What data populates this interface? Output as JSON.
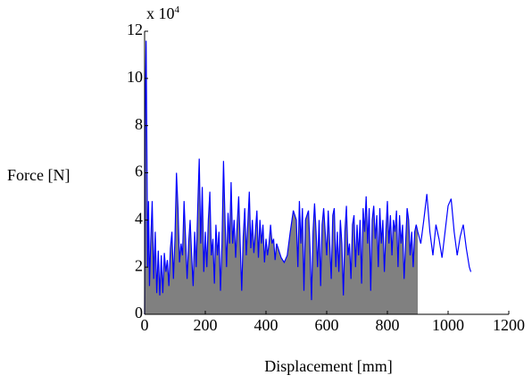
{
  "chart_data": {
    "type": "line",
    "xlabel": "Displacement [mm]",
    "ylabel": "Force [N]",
    "y_multiplier": "x 10",
    "y_multiplier_exp": "4",
    "x": [
      0,
      2,
      5,
      8,
      10,
      13,
      16,
      20,
      25,
      30,
      35,
      40,
      45,
      50,
      55,
      60,
      65,
      70,
      75,
      80,
      85,
      90,
      95,
      100,
      105,
      110,
      115,
      120,
      125,
      130,
      135,
      140,
      145,
      150,
      155,
      160,
      165,
      170,
      175,
      180,
      185,
      190,
      195,
      200,
      205,
      210,
      215,
      220,
      225,
      230,
      235,
      240,
      245,
      250,
      255,
      260,
      265,
      270,
      275,
      280,
      285,
      290,
      295,
      300,
      305,
      310,
      315,
      320,
      325,
      330,
      335,
      340,
      345,
      350,
      355,
      360,
      365,
      370,
      375,
      380,
      385,
      390,
      395,
      400,
      405,
      410,
      415,
      420,
      425,
      430,
      435,
      440,
      450,
      460,
      470,
      480,
      490,
      500,
      505,
      510,
      515,
      520,
      525,
      530,
      540,
      545,
      550,
      555,
      560,
      565,
      570,
      575,
      580,
      585,
      590,
      600,
      605,
      610,
      615,
      620,
      625,
      630,
      635,
      640,
      645,
      650,
      655,
      660,
      665,
      670,
      675,
      680,
      685,
      690,
      695,
      700,
      705,
      710,
      715,
      720,
      725,
      730,
      735,
      740,
      745,
      750,
      755,
      760,
      765,
      770,
      775,
      780,
      785,
      790,
      795,
      800,
      805,
      810,
      815,
      820,
      825,
      830,
      835,
      840,
      845,
      850,
      855,
      860,
      865,
      870,
      875,
      880,
      885,
      890,
      895,
      900,
      910,
      920,
      930,
      940,
      950,
      960,
      970,
      980,
      990,
      1000,
      1010,
      1020,
      1030,
      1040,
      1050,
      1060,
      1070,
      1075
    ],
    "series": [
      {
        "name": "Force",
        "color": "#0000ff",
        "values": [
          0,
          8.4,
          11.6,
          6,
          2,
          4.8,
          1.2,
          3,
          4.8,
          1.5,
          3.5,
          0.9,
          2.7,
          0.8,
          2.5,
          0.9,
          2.6,
          1.8,
          2.3,
          1.2,
          2.8,
          3.5,
          1.5,
          3.2,
          6.0,
          4.5,
          2.2,
          3.0,
          2.5,
          4.8,
          3.2,
          1.5,
          3.0,
          4.0,
          2.5,
          1.2,
          3.5,
          2.0,
          4.5,
          6.6,
          3.0,
          5.4,
          1.8,
          3.5,
          2.0,
          4.0,
          5.2,
          2.5,
          3.2,
          1.3,
          3.8,
          2.5,
          3.5,
          1.0,
          3.0,
          6.5,
          4.0,
          2.0,
          4.3,
          3.0,
          5.6,
          3.0,
          4.0,
          2.4,
          3.8,
          5.0,
          3.0,
          1.0,
          3.3,
          4.5,
          2.5,
          3.8,
          5.2,
          2.8,
          4.0,
          2.6,
          3.5,
          4.4,
          2.4,
          4.0,
          3.0,
          3.8,
          2.2,
          3.2,
          2.5,
          3.0,
          3.8,
          3.0,
          3.2,
          2.3,
          3.0,
          2.8,
          2.4,
          2.2,
          2.5,
          3.5,
          4.4,
          4.0,
          2.0,
          4.8,
          3.0,
          4.5,
          1.0,
          4.0,
          4.4,
          2.8,
          0.6,
          3.5,
          4.7,
          3.5,
          2.0,
          4.0,
          1.2,
          3.8,
          4.5,
          2.5,
          4.4,
          3.0,
          1.5,
          4.2,
          4.5,
          2.0,
          3.5,
          1.8,
          4.0,
          3.0,
          0.8,
          3.5,
          4.6,
          2.5,
          3.0,
          1.5,
          3.8,
          4.2,
          2.0,
          3.8,
          2.5,
          4.0,
          1.3,
          4.5,
          3.5,
          5.0,
          3.0,
          4.5,
          1.0,
          4.0,
          4.6,
          3.2,
          4.2,
          2.0,
          4.5,
          3.0,
          4.0,
          1.8,
          3.5,
          4.8,
          3.0,
          4.2,
          2.5,
          4.0,
          3.5,
          4.4,
          2.0,
          4.2,
          3.0,
          3.8,
          1.5,
          3.0,
          4.5,
          4.0,
          2.5,
          3.5,
          2.0,
          3.5,
          3.8,
          3.5,
          3.0,
          4.0,
          5.1,
          3.5,
          2.5,
          3.8,
          3.2,
          2.4,
          3.5,
          4.6,
          4.9,
          3.5,
          2.5,
          3.3,
          3.8,
          2.8,
          2.0,
          1.8
        ]
      }
    ],
    "fill_color": "#808080",
    "fill_to_x": 900,
    "xlim": [
      0,
      1200
    ],
    "xticks": [
      0,
      200,
      400,
      600,
      800,
      1000,
      1200
    ],
    "ylim": [
      0,
      12
    ],
    "yticks": [
      0,
      2,
      4,
      6,
      8,
      10,
      12
    ]
  }
}
